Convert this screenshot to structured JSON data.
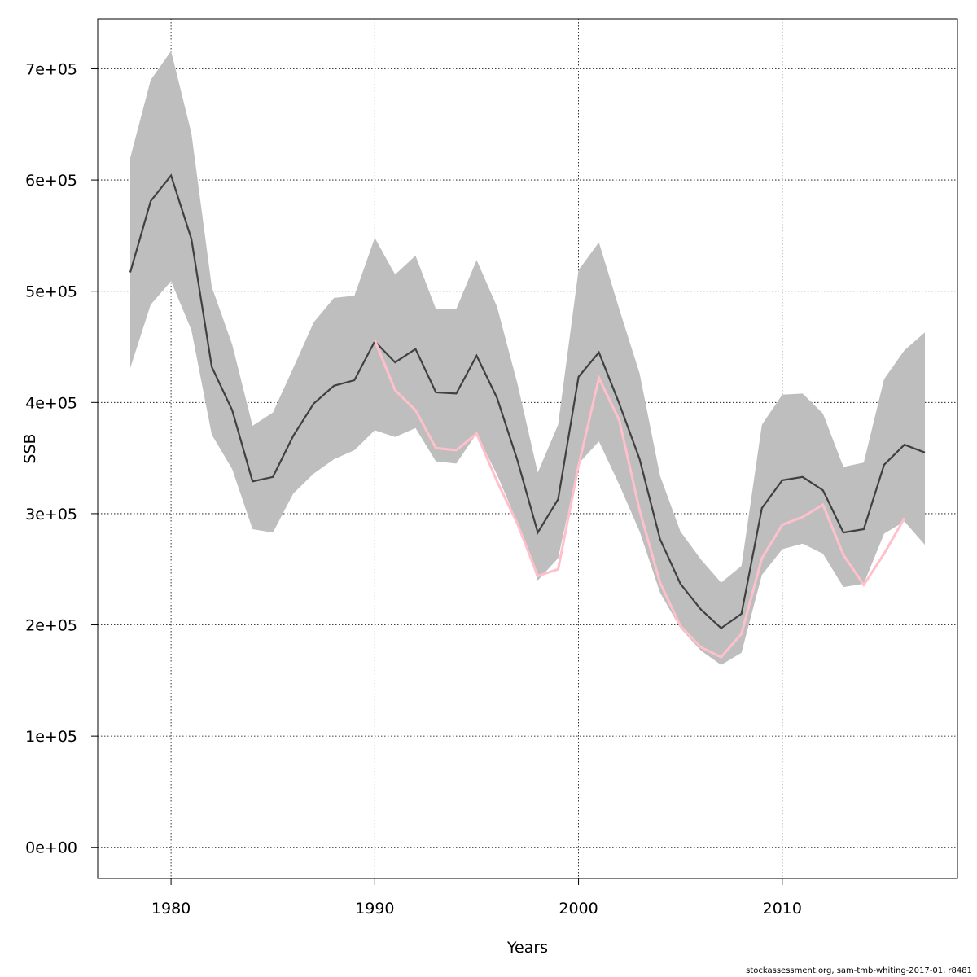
{
  "chart_data": {
    "type": "line",
    "title": "",
    "xlabel": "Years",
    "ylabel": "SSB",
    "xlim": [
      1976.4,
      2018.6
    ],
    "ylim": [
      -28000,
      745000
    ],
    "x_ticks": [
      1980,
      1990,
      2000,
      2010
    ],
    "x_tick_labels": [
      "1980",
      "1990",
      "2000",
      "2010"
    ],
    "y_ticks": [
      0,
      100000,
      200000,
      300000,
      400000,
      500000,
      600000,
      700000
    ],
    "y_tick_labels": [
      "0e+00",
      "1e+05",
      "2e+05",
      "3e+05",
      "4e+05",
      "5e+05",
      "6e+05",
      "7e+05"
    ],
    "grid": true,
    "x": [
      1978,
      1979,
      1980,
      1981,
      1982,
      1983,
      1984,
      1985,
      1986,
      1987,
      1988,
      1989,
      1990,
      1991,
      1992,
      1993,
      1994,
      1995,
      1996,
      1997,
      1998,
      1999,
      2000,
      2001,
      2002,
      2003,
      2004,
      2005,
      2006,
      2007,
      2008,
      2009,
      2010,
      2011,
      2012,
      2013,
      2014,
      2015,
      2016,
      2017
    ],
    "series": [
      {
        "role": "estimate",
        "color": "#404040",
        "values": [
          517000,
          581000,
          604000,
          547000,
          432000,
          393000,
          329000,
          333000,
          370000,
          399000,
          415000,
          420000,
          455000,
          436000,
          448000,
          409000,
          408000,
          442000,
          404000,
          348000,
          283000,
          313000,
          423000,
          445000,
          399000,
          349000,
          277000,
          237000,
          214000,
          197000,
          210000,
          305000,
          330000,
          333000,
          321000,
          283000,
          286000,
          344000,
          362000,
          355000
        ]
      },
      {
        "role": "retrospective",
        "color": "#ffc0cb",
        "x": [
          1990,
          1991,
          1992,
          1993,
          1994,
          1995,
          1996,
          1997,
          1998,
          1999,
          2000,
          2001,
          2002,
          2003,
          2004,
          2005,
          2006,
          2007,
          2008,
          2009,
          2010,
          2011,
          2012,
          2013,
          2014,
          2015,
          2016
        ],
        "values": [
          456000,
          411000,
          393000,
          359000,
          357000,
          372000,
          329000,
          291000,
          244000,
          250000,
          343000,
          422000,
          384000,
          303000,
          238000,
          199000,
          180000,
          171000,
          192000,
          260000,
          290000,
          297000,
          308000,
          263000,
          236000,
          264000,
          296000
        ]
      }
    ],
    "band": {
      "color": "#bebebe",
      "lower": [
        431000,
        488000,
        509000,
        465000,
        371000,
        340000,
        286000,
        283000,
        318000,
        336000,
        349000,
        357000,
        375000,
        369000,
        377000,
        347000,
        345000,
        372000,
        335000,
        292000,
        240000,
        260000,
        345000,
        365000,
        326000,
        284000,
        229000,
        197000,
        177000,
        164000,
        175000,
        245000,
        268000,
        273000,
        264000,
        234000,
        237000,
        282000,
        293000,
        272000
      ],
      "upper": [
        620000,
        690000,
        716000,
        642000,
        504000,
        452000,
        379000,
        391000,
        431000,
        472000,
        494000,
        496000,
        548000,
        515000,
        532000,
        484000,
        484000,
        528000,
        486000,
        417000,
        337000,
        380000,
        519000,
        544000,
        484000,
        426000,
        334000,
        284000,
        259000,
        238000,
        253000,
        380000,
        407000,
        408000,
        390000,
        342000,
        346000,
        421000,
        447000,
        463000
      ]
    }
  },
  "footer": {
    "text": "stockassessment.org, sam-tmb-whiting-2017-01, r8481"
  }
}
